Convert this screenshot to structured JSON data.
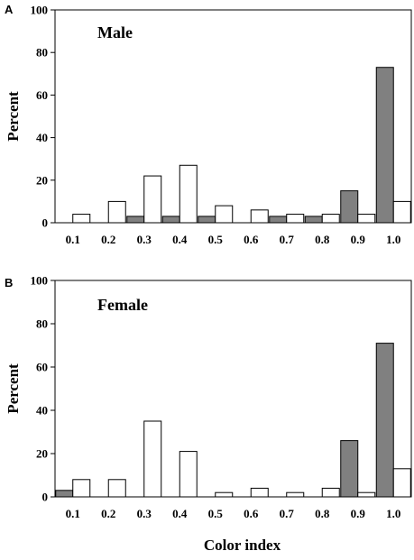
{
  "chart_data": [
    {
      "type": "bar",
      "panel_label": "A",
      "title": "Male",
      "ylabel": "Percent",
      "xlabel": "",
      "ylim": [
        0,
        100
      ],
      "yticks": [
        "0",
        "20",
        "40",
        "60",
        "80",
        "100"
      ],
      "categories": [
        "0.1",
        "0.2",
        "0.3",
        "0.4",
        "0.5",
        "0.6",
        "0.7",
        "0.8",
        "0.9",
        "1.0"
      ],
      "series": [
        {
          "color": "#808080",
          "values": [
            0,
            0,
            3,
            3,
            3,
            0,
            3,
            3,
            15,
            73
          ]
        },
        {
          "color": "#ffffff",
          "values": [
            4,
            10,
            22,
            27,
            8,
            6,
            4,
            4,
            4,
            10
          ]
        }
      ]
    },
    {
      "type": "bar",
      "panel_label": "B",
      "title": "Female",
      "ylabel": "Percent",
      "xlabel": "Color index",
      "ylim": [
        0,
        100
      ],
      "yticks": [
        "0",
        "20",
        "40",
        "60",
        "80",
        "100"
      ],
      "categories": [
        "0.1",
        "0.2",
        "0.3",
        "0.4",
        "0.5",
        "0.6",
        "0.7",
        "0.8",
        "0.9",
        "1.0"
      ],
      "series": [
        {
          "color": "#808080",
          "values": [
            3,
            0,
            0,
            0,
            0,
            0,
            0,
            0,
            26,
            71
          ]
        },
        {
          "color": "#ffffff",
          "values": [
            8,
            8,
            35,
            21,
            2,
            4,
            2,
            4,
            2,
            13
          ]
        }
      ]
    }
  ]
}
